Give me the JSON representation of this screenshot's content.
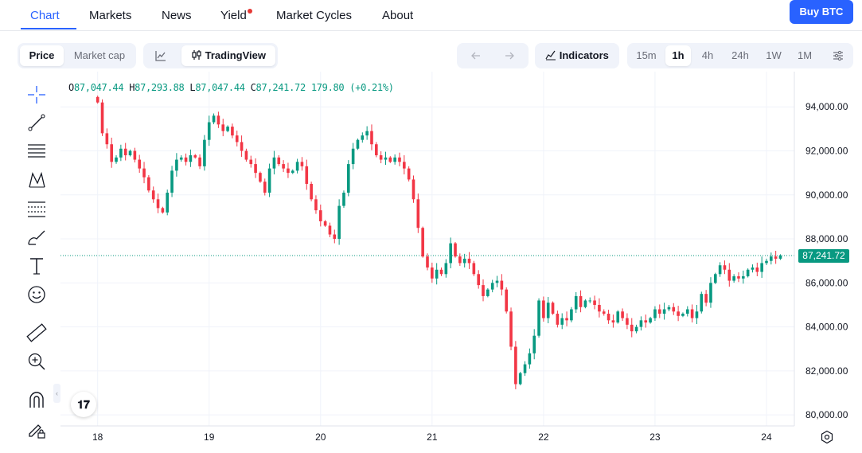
{
  "nav": {
    "tabs": [
      {
        "label": "Chart",
        "active": true
      },
      {
        "label": "Markets"
      },
      {
        "label": "News"
      },
      {
        "label": "Yield",
        "badge": "red-dot"
      },
      {
        "label": "Market Cycles"
      },
      {
        "label": "About"
      }
    ],
    "buy_button": "Buy BTC"
  },
  "toolbar": {
    "metric_tabs": [
      {
        "label": "Price",
        "active": true
      },
      {
        "label": "Market cap"
      }
    ],
    "chart_type": {
      "line_icon": "line-chart-icon",
      "tradingview_label": "TradingView",
      "tradingview_icon": "candlestick-icon"
    },
    "undo_icon": "arrow-left-icon",
    "redo_icon": "arrow-right-icon",
    "indicators_label": "Indicators",
    "intervals": [
      {
        "label": "15m"
      },
      {
        "label": "1h",
        "active": true
      },
      {
        "label": "4h"
      },
      {
        "label": "24h"
      },
      {
        "label": "1W"
      },
      {
        "label": "1M"
      }
    ],
    "settings_icon": "sliders-icon"
  },
  "drawing_tools": [
    "crosshair-icon",
    "trend-line-icon",
    "horizontal-lines-icon",
    "pattern-icon",
    "fib-icon",
    "brush-icon",
    "text-icon",
    "emoji-icon",
    "ruler-icon",
    "zoom-in-icon",
    "magnet-icon",
    "lock-pencil-icon"
  ],
  "ohlc": {
    "o_label": "O",
    "o": "87,047.44",
    "h_label": "H",
    "h": "87,293.88",
    "l_label": "L",
    "l": "87,047.44",
    "c_label": "C",
    "c": "87,241.72",
    "change": "179.80 (+0.21%)"
  },
  "colors": {
    "up": "#089981",
    "down": "#f23645",
    "accent": "#2962ff"
  },
  "chart_data": {
    "type": "candlestick",
    "symbol_interval": "1h",
    "y_ticks": [
      "80,000.00",
      "82,000.00",
      "84,000.00",
      "86,000.00",
      "88,000.00",
      "90,000.00",
      "92,000.00",
      "94,000.00"
    ],
    "y_tick_values": [
      80000,
      82000,
      84000,
      86000,
      88000,
      90000,
      92000,
      94000
    ],
    "ylim": [
      79500,
      95600
    ],
    "x_ticks": [
      "18",
      "19",
      "20",
      "21",
      "22",
      "23",
      "24"
    ],
    "x_tick_hours": [
      0,
      24,
      48,
      72,
      96,
      120,
      144
    ],
    "xlim": [
      -8,
      150
    ],
    "last_price": "87,241.72",
    "last_price_value": 87241.72,
    "grid": true,
    "closes": [
      94200,
      92800,
      92300,
      91500,
      91700,
      92100,
      91800,
      92000,
      91600,
      91200,
      90800,
      90200,
      89800,
      89400,
      89200,
      90100,
      91100,
      91600,
      91700,
      91500,
      91800,
      91700,
      91300,
      92500,
      93300,
      93600,
      93200,
      92900,
      93100,
      92700,
      92400,
      92000,
      91600,
      91400,
      91000,
      90600,
      90100,
      91200,
      91700,
      91400,
      91200,
      91000,
      91100,
      91500,
      91300,
      90500,
      89800,
      89300,
      88800,
      88600,
      88200,
      88000,
      89500,
      90100,
      91400,
      92100,
      92500,
      92700,
      92900,
      92300,
      91800,
      91600,
      91700,
      91500,
      91700,
      91500,
      91200,
      90700,
      89800,
      88500,
      87200,
      86700,
      86200,
      86600,
      86400,
      86900,
      87800,
      87200,
      86900,
      87100,
      86900,
      86400,
      85900,
      85400,
      85700,
      86000,
      86100,
      85700,
      84700,
      83100,
      81400,
      81900,
      82300,
      82800,
      83600,
      85200,
      84400,
      85100,
      84600,
      84100,
      84400,
      84300,
      84800,
      85400,
      84900,
      85200,
      85200,
      85000,
      84700,
      84600,
      84300,
      84200,
      84700,
      84400,
      84100,
      83800,
      84000,
      84300,
      84200,
      84400,
      84800,
      84600,
      84800,
      84900,
      84700,
      84500,
      84600,
      84800,
      84400,
      84700,
      85500,
      85100,
      86000,
      86400,
      86800,
      86600,
      86100,
      86300,
      86200,
      86300,
      86600,
      86700,
      86500,
      86900,
      87000,
      87200,
      87100,
      87241.72
    ]
  }
}
